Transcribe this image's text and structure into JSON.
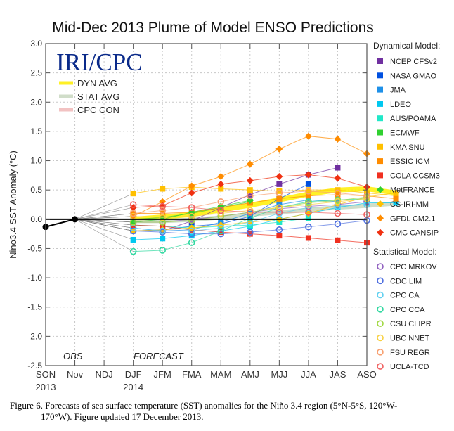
{
  "chart_data": {
    "type": "line",
    "title": "Mid-Dec 2013 Plume of Model ENSO Predictions",
    "ylabel": "Nino3.4 SST Anomaly (°C)",
    "xlabel": "",
    "ylim": [
      -2.5,
      3.0
    ],
    "yticks": [
      "3.0",
      "2.5",
      "2.0",
      "1.5",
      "1.0",
      "0.5",
      "0.0",
      "-0.5",
      "-1.0",
      "-1.5",
      "-2.0",
      "-2.5"
    ],
    "ytick_values": [
      3.0,
      2.5,
      2.0,
      1.5,
      1.0,
      0.5,
      0.0,
      -0.5,
      -1.0,
      -1.5,
      -2.0,
      -2.5
    ],
    "categories": [
      "SON",
      "Nov",
      "NDJ",
      "DJF",
      "JFM",
      "FMA",
      "MAM",
      "AMJ",
      "MJJ",
      "JJA",
      "JAS",
      "ASO"
    ],
    "year_labels": [
      {
        "at": "SON",
        "text": "2013"
      },
      {
        "at": "DJF",
        "text": "2014"
      }
    ],
    "grid": true,
    "logo": "IRI/CPC",
    "annotations": {
      "obs": "OBS",
      "forecast": "FORECAST"
    },
    "observed": {
      "name": "OBS",
      "color": "#000000",
      "values": [
        -0.13,
        0.0
      ]
    },
    "averages": [
      {
        "name": "DYN AVG",
        "color": "#ffee00",
        "values": [
          0.0,
          0.04,
          0.08,
          0.16,
          0.24,
          0.33,
          0.43,
          0.5,
          0.52,
          0.45
        ]
      },
      {
        "name": "STAT AVG",
        "color": "#c8d8c0",
        "values": [
          -0.03,
          -0.03,
          -0.01,
          0.03,
          0.08,
          0.12,
          0.16,
          0.2,
          0.23,
          0.27
        ]
      },
      {
        "name": "CPC CON",
        "color": "#f0b8b8",
        "values": [
          0.0,
          0.0,
          0.0,
          0.0,
          0.0,
          0.0,
          0.0,
          0.0,
          0.0,
          0.0
        ]
      }
    ],
    "legend_dynamical_title": "Dynamical Model:",
    "legend_statistical_title": "Statistical Model:",
    "dynamical_models": [
      {
        "name": "NCEP CFSv2",
        "color": "#7030a0",
        "marker": "square",
        "values": [
          -0.2,
          -0.2,
          -0.03,
          0.2,
          0.42,
          0.6,
          0.76,
          0.88,
          null,
          null
        ]
      },
      {
        "name": "NASA GMAO",
        "color": "#0050e0",
        "marker": "square",
        "values": [
          -0.2,
          -0.18,
          -0.12,
          -0.08,
          0.05,
          0.35,
          0.6,
          null,
          null,
          null
        ]
      },
      {
        "name": "JMA",
        "color": "#1e90e8",
        "marker": "square",
        "values": [
          -0.15,
          -0.2,
          -0.18,
          -0.05,
          0.1,
          0.25,
          0.33,
          0.3,
          null,
          null
        ]
      },
      {
        "name": "LDEO",
        "color": "#00c8f0",
        "marker": "square",
        "values": [
          -0.35,
          -0.33,
          -0.28,
          -0.2,
          -0.12,
          0.0,
          0.1,
          0.2,
          0.28,
          0.28
        ]
      },
      {
        "name": "AUS/POAMA",
        "color": "#20e8c8",
        "marker": "square",
        "values": [
          -0.1,
          -0.12,
          -0.15,
          -0.12,
          -0.1,
          -0.05,
          0.02,
          null,
          null,
          null
        ]
      },
      {
        "name": "ECMWF",
        "color": "#30d030",
        "marker": "square",
        "values": [
          0.0,
          0.03,
          0.1,
          0.2,
          0.3,
          null,
          null,
          null,
          null,
          null
        ]
      },
      {
        "name": "KMA SNU",
        "color": "#ffc000",
        "marker": "square",
        "values": [
          0.44,
          0.52,
          0.55,
          0.52,
          0.5,
          0.48,
          0.5,
          0.5,
          0.45,
          0.4
        ]
      },
      {
        "name": "ESSIC ICM",
        "color": "#ff8c00",
        "marker": "square",
        "values": [
          0.1,
          0.1,
          0.12,
          0.2,
          0.28,
          0.35,
          0.4,
          0.42,
          0.4,
          0.35
        ]
      },
      {
        "name": "COLA CCSM3",
        "color": "#f03020",
        "marker": "square",
        "values": [
          -0.1,
          -0.12,
          -0.18,
          -0.22,
          -0.25,
          -0.28,
          -0.32,
          -0.36,
          -0.4,
          null
        ]
      },
      {
        "name": "MetFRANCE",
        "color": "#30d030",
        "marker": "diamond",
        "values": [
          -0.05,
          0.0,
          0.12,
          0.22,
          0.32,
          null,
          null,
          null,
          null,
          null
        ]
      },
      {
        "name": "CS-IRI-MM",
        "color": "#ffc000",
        "marker": "diamond",
        "values": [
          -0.2,
          -0.18,
          -0.15,
          -0.1,
          -0.05,
          0.0,
          0.1,
          0.25,
          0.38,
          0.45
        ]
      },
      {
        "name": "GFDL CM2.1",
        "color": "#ff8c00",
        "marker": "diamond",
        "values": [
          0.05,
          0.3,
          0.57,
          0.73,
          0.94,
          1.2,
          1.42,
          1.37,
          1.12,
          null
        ]
      },
      {
        "name": "CMC CANSIP",
        "color": "#f03010",
        "marker": "diamond",
        "values": [
          0.2,
          0.23,
          0.45,
          0.6,
          0.66,
          0.73,
          0.76,
          0.7,
          0.55,
          null
        ]
      }
    ],
    "statistical_models": [
      {
        "name": "CPC MRKOV",
        "color": "#9060c0",
        "marker": "circle",
        "values": [
          -0.05,
          -0.05,
          0.0,
          0.05,
          0.12,
          0.18,
          0.22,
          0.25,
          0.3,
          null
        ]
      },
      {
        "name": "CDC LIM",
        "color": "#5070e0",
        "marker": "circle",
        "values": [
          -0.2,
          -0.22,
          -0.25,
          -0.25,
          -0.22,
          -0.18,
          -0.13,
          -0.08,
          -0.02,
          null
        ]
      },
      {
        "name": "CPC CA",
        "color": "#60d0f0",
        "marker": "circle",
        "values": [
          -0.15,
          -0.2,
          -0.2,
          -0.15,
          -0.05,
          0.1,
          0.2,
          0.22,
          0.25,
          null
        ]
      },
      {
        "name": "CPC CCA",
        "color": "#30d8a0",
        "marker": "circle",
        "values": [
          -0.55,
          -0.53,
          -0.4,
          -0.2,
          0.02,
          0.2,
          0.3,
          0.33,
          0.35,
          null
        ]
      },
      {
        "name": "CSU CLIPR",
        "color": "#a0d840",
        "marker": "circle",
        "values": [
          -0.05,
          -0.05,
          -0.02,
          0.05,
          0.12,
          0.2,
          0.28,
          0.32,
          0.38,
          null
        ]
      },
      {
        "name": "UBC NNET",
        "color": "#f8d040",
        "marker": "circle",
        "values": [
          0.05,
          0.03,
          0.05,
          0.1,
          0.15,
          0.2,
          0.25,
          0.3,
          0.35,
          null
        ]
      },
      {
        "name": "FSU REGR",
        "color": "#f8a070",
        "marker": "circle",
        "values": [
          0.1,
          0.15,
          0.2,
          0.3,
          0.4,
          0.45,
          0.48,
          0.45,
          0.4,
          null
        ]
      },
      {
        "name": "UCLA-TCD",
        "color": "#f06060",
        "marker": "circle",
        "values": [
          0.25,
          0.22,
          0.2,
          0.15,
          0.12,
          0.12,
          0.12,
          0.1,
          0.08,
          null
        ]
      }
    ]
  },
  "caption": {
    "line1": "Figure 6. Forecasts of sea surface temperature (SST) anomalies for the Niño 3.4 region (5°N-5°S, 120°W-",
    "line2": "170°W).  Figure updated 17 December 2013."
  }
}
